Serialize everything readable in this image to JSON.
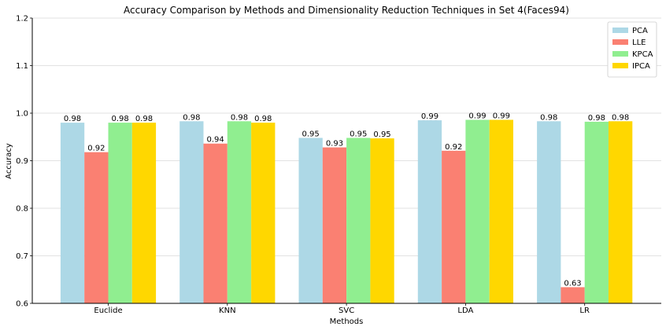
{
  "chart_data": {
    "type": "bar",
    "title": "Accuracy Comparison by Methods and Dimensionality Reduction Techniques in Set 4(Faces94)",
    "xlabel": "Methods",
    "ylabel": "Accuracy",
    "categories": [
      "Euclide",
      "KNN",
      "SVC",
      "LDA",
      "LR"
    ],
    "ylim": [
      0.6,
      1.2
    ],
    "yticks": [
      "0.6",
      "0.7",
      "0.8",
      "0.9",
      "1.0",
      "1.1",
      "1.2"
    ],
    "grid": "horizontal",
    "legend_position": "top-right",
    "series": [
      {
        "name": "PCA",
        "color": "#add8e6",
        "values": [
          0.98,
          0.983,
          0.948,
          0.985,
          0.983
        ],
        "labels": [
          "0.98",
          "0.98",
          "0.95",
          "0.99",
          "0.98"
        ]
      },
      {
        "name": "LLE",
        "color": "#fa8072",
        "values": [
          0.918,
          0.936,
          0.928,
          0.921,
          0.634
        ],
        "labels": [
          "0.92",
          "0.94",
          "0.93",
          "0.92",
          "0.63"
        ]
      },
      {
        "name": "KPCA",
        "color": "#90ee90",
        "values": [
          0.98,
          0.983,
          0.948,
          0.986,
          0.982
        ],
        "labels": [
          "0.98",
          "0.98",
          "0.95",
          "0.99",
          "0.98"
        ]
      },
      {
        "name": "IPCA",
        "color": "#ffd700",
        "values": [
          0.98,
          0.98,
          0.947,
          0.986,
          0.983
        ],
        "labels": [
          "0.98",
          "0.98",
          "0.95",
          "0.99",
          "0.98"
        ]
      }
    ]
  }
}
